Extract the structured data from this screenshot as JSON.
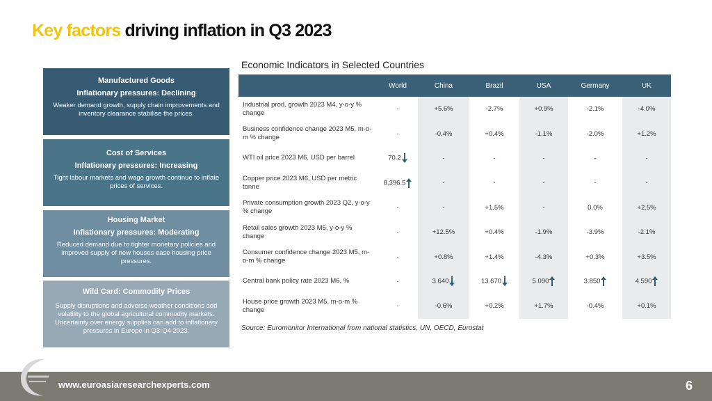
{
  "title": {
    "highlight": "Key factors",
    "rest": "driving inflation in Q3 2023"
  },
  "cards": [
    {
      "title": "Manufactured Goods",
      "subtitle": "Inflationary pressures: Declining",
      "body": "Weaker demand growth, supply chain improvements and inventory clearance stabilise the prices."
    },
    {
      "title": "Cost of Services",
      "subtitle": "Inflationary pressures: Increasing",
      "body": "Tight labour markets and wage growth continue to inflate prices of services."
    },
    {
      "title": "Housing Market",
      "subtitle": "Inflationary pressures: Moderating",
      "body": "Reduced demand due to tighter monetary policies and improved supply of new houses ease housing price pressures."
    },
    {
      "title": "Wild Card: Commodity Prices",
      "subtitle": "",
      "body": "Supply disruptions and adverse weather conditions add volatility to the global agricultural commodity markets. Uncertainty over energy supplies can add to inflationary pressures in Europe in Q3-Q4 2023."
    }
  ],
  "table": {
    "title": "Economic Indicators in Selected Countries",
    "headers": [
      "",
      "World",
      "China",
      "Brazil",
      "USA",
      "Germany",
      "UK"
    ],
    "rows": [
      {
        "label": "Industrial prod. growth 2023 M4, y-o-y % change",
        "cells": [
          "-",
          "+5.6%",
          "-2.7%",
          "+0.9%",
          "-2.1%",
          "-4.0%"
        ]
      },
      {
        "label": "Business confidence change 2023 M5, m-o-m % change",
        "cells": [
          "-",
          "-0.4%",
          "+0.4%",
          "-1.1%",
          "-2.0%",
          "+1.2%"
        ]
      },
      {
        "label": "WTI oil price 2023 M6, USD per barrel",
        "cells": [
          "70.2",
          "-",
          "-",
          "-",
          "-",
          "-"
        ]
      },
      {
        "label": "Copper price 2023 M6, USD per metric tonne",
        "cells": [
          "8,396.5",
          "-",
          "-",
          "-",
          "-",
          "-"
        ]
      },
      {
        "label": "Private consumption growth 2023 Q2, y-o-y % change",
        "cells": [
          "-",
          "-",
          "+1.5%",
          "-",
          "0.0%",
          "+2.5%"
        ]
      },
      {
        "label": "Retail sales growth 2023 M5, y-o-y % change",
        "cells": [
          "-",
          "+12.5%",
          "+0.4%",
          "-1.9%",
          "-3.9%",
          "-2.1%"
        ]
      },
      {
        "label": "Consumer confidence change 2023 M5, m-o-m % change",
        "cells": [
          "-",
          "+0.8%",
          "+1.4%",
          "-4.3%",
          "+0.3%",
          "+3.5%"
        ]
      },
      {
        "label": "Central bank policy rate 2023 M6, %",
        "cells": [
          "-",
          "3.640",
          "13.670",
          "5.090",
          "3.850",
          "4.590"
        ]
      },
      {
        "label": "House price growth 2023 M5, m-o-m % change",
        "cells": [
          "-",
          "-0.6%",
          "+0.2%",
          "+1.7%",
          "-0.4%",
          "+0.1%"
        ]
      }
    ],
    "arrows": {
      "oil_world": "down",
      "copper_world": "up",
      "rate_china": "down",
      "rate_brazil": "down",
      "rate_usa": "up",
      "rate_germany": "up",
      "rate_uk": "up"
    },
    "arrow_color": "#2f5f7a"
  },
  "source": "Source: Euromonitor International from national statistics, UN, OECD, Eurostat",
  "footer": {
    "url": "www.euroasiaresearchexperts.com",
    "page": "6"
  },
  "colors": {
    "accent": "#f1c40f",
    "header": "#3a6177",
    "footer": "#7b7b72"
  }
}
